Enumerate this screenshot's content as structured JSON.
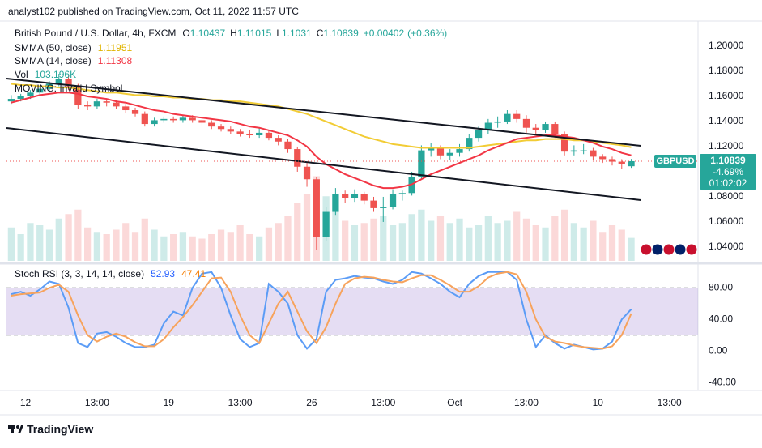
{
  "header": {
    "published": "analyst102 published on TradingView.com, Oct 11, 2022 11:57 UTC"
  },
  "footer": {
    "brand": "TradingView"
  },
  "chart_data": [
    {
      "type": "candlestick",
      "title": "British Pound / U.S. Dollar, 4h, FXCM",
      "ohlc_labels": [
        "O",
        "H",
        "L",
        "C"
      ],
      "change": {
        "value": 0.00402,
        "label": "+0.00402"
      },
      "change_pct": {
        "value": 0.36,
        "label": "(+0.36%)"
      },
      "colors": {
        "up": "#26a69a",
        "down": "#ef5350"
      },
      "open": [
        1.156,
        1.158,
        1.16,
        1.163,
        1.166,
        1.17,
        1.174,
        1.168,
        1.153,
        1.152,
        1.156,
        1.155,
        1.152,
        1.149,
        1.146,
        1.138,
        1.141,
        1.142,
        1.141,
        1.143,
        1.141,
        1.139,
        1.136,
        1.134,
        1.132,
        1.13,
        1.129,
        1.131,
        1.127,
        1.124,
        1.118,
        1.104,
        1.094,
        1.048,
        1.068,
        1.082,
        1.079,
        1.082,
        1.077,
        1.071,
        1.072,
        1.082,
        1.083,
        1.096,
        1.117,
        1.119,
        1.113,
        1.115,
        1.118,
        1.127,
        1.133,
        1.139,
        1.14,
        1.146,
        1.142,
        1.135,
        1.133,
        1.138,
        1.13,
        1.116,
        1.117,
        1.117,
        1.112,
        1.11,
        1.108,
        1.10437
      ],
      "high": [
        1.161,
        1.162,
        1.165,
        1.168,
        1.172,
        1.178,
        1.177,
        1.17,
        1.156,
        1.158,
        1.158,
        1.157,
        1.154,
        1.151,
        1.148,
        1.143,
        1.144,
        1.144,
        1.145,
        1.145,
        1.143,
        1.141,
        1.138,
        1.136,
        1.134,
        1.133,
        1.135,
        1.133,
        1.129,
        1.126,
        1.12,
        1.107,
        1.096,
        1.072,
        1.087,
        1.085,
        1.086,
        1.084,
        1.08,
        1.08,
        1.086,
        1.085,
        1.1,
        1.121,
        1.123,
        1.121,
        1.118,
        1.122,
        1.13,
        1.136,
        1.142,
        1.144,
        1.149,
        1.149,
        1.145,
        1.138,
        1.14,
        1.14,
        1.132,
        1.121,
        1.122,
        1.119,
        1.114,
        1.112,
        1.11,
        1.11015
      ],
      "low": [
        1.154,
        1.156,
        1.158,
        1.161,
        1.164,
        1.168,
        1.165,
        1.15,
        1.149,
        1.15,
        1.152,
        1.15,
        1.147,
        1.144,
        1.136,
        1.136,
        1.139,
        1.139,
        1.139,
        1.139,
        1.137,
        1.134,
        1.132,
        1.13,
        1.128,
        1.127,
        1.127,
        1.125,
        1.121,
        1.115,
        1.1,
        1.088,
        1.038,
        1.045,
        1.065,
        1.075,
        1.076,
        1.074,
        1.068,
        1.06,
        1.07,
        1.077,
        1.081,
        1.094,
        1.112,
        1.11,
        1.109,
        1.112,
        1.116,
        1.124,
        1.13,
        1.135,
        1.138,
        1.139,
        1.131,
        1.129,
        1.131,
        1.127,
        1.113,
        1.113,
        1.114,
        1.109,
        1.107,
        1.105,
        1.102,
        1.1031
      ],
      "close": [
        1.158,
        1.16,
        1.163,
        1.166,
        1.17,
        1.174,
        1.168,
        1.153,
        1.152,
        1.156,
        1.155,
        1.152,
        1.149,
        1.146,
        1.138,
        1.141,
        1.142,
        1.141,
        1.143,
        1.141,
        1.139,
        1.136,
        1.134,
        1.132,
        1.13,
        1.129,
        1.131,
        1.127,
        1.124,
        1.118,
        1.104,
        1.094,
        1.048,
        1.068,
        1.082,
        1.079,
        1.082,
        1.077,
        1.071,
        1.072,
        1.082,
        1.083,
        1.096,
        1.117,
        1.119,
        1.113,
        1.115,
        1.118,
        1.127,
        1.133,
        1.139,
        1.14,
        1.146,
        1.142,
        1.135,
        1.133,
        1.138,
        1.13,
        1.116,
        1.117,
        1.117,
        1.112,
        1.11,
        1.108,
        1.106,
        1.10839
      ],
      "xlim": [
        -0.5,
        72
      ],
      "xticks": [
        {
          "value": 1.5,
          "label": "12"
        },
        {
          "value": 9,
          "label": "13:00"
        },
        {
          "value": 16.5,
          "label": "19"
        },
        {
          "value": 24,
          "label": "13:00"
        },
        {
          "value": 31.5,
          "label": "26"
        },
        {
          "value": 39,
          "label": "13:00"
        },
        {
          "value": 46.5,
          "label": "Oct"
        },
        {
          "value": 54,
          "label": "13:00"
        },
        {
          "value": 61.5,
          "label": "10"
        },
        {
          "value": 69,
          "label": "13:00"
        }
      ],
      "ylim": [
        1.029,
        1.2174
      ],
      "yticks": [
        {
          "value": 1.2,
          "label": "1.20000"
        },
        {
          "value": 1.18,
          "label": "1.18000"
        },
        {
          "value": 1.16,
          "label": "1.16000"
        },
        {
          "value": 1.14,
          "label": "1.14000"
        },
        {
          "value": 1.12,
          "label": "1.12000"
        },
        {
          "value": 1.08,
          "label": "1.08000"
        },
        {
          "value": 1.06,
          "label": "1.06000"
        },
        {
          "value": 1.04,
          "label": "1.04000"
        }
      ],
      "grid": false,
      "indicators": [
        {
          "name": "SMMA (50, close)",
          "color": "#f2cc35",
          "values": [
            1.17,
            1.169,
            1.169,
            1.168,
            1.168,
            1.167,
            1.167,
            1.166,
            1.165,
            1.164,
            1.163,
            1.163,
            1.162,
            1.161,
            1.161,
            1.16,
            1.16,
            1.159,
            1.159,
            1.158,
            1.158,
            1.157,
            1.157,
            1.156,
            1.156,
            1.155,
            1.154,
            1.153,
            1.152,
            1.15,
            1.148,
            1.146,
            1.143,
            1.14,
            1.137,
            1.134,
            1.131,
            1.128,
            1.126,
            1.124,
            1.122,
            1.121,
            1.12,
            1.119,
            1.119,
            1.119,
            1.119,
            1.119,
            1.119,
            1.12,
            1.121,
            1.122,
            1.123,
            1.124,
            1.125,
            1.125,
            1.126,
            1.126,
            1.126,
            1.125,
            1.125,
            1.124,
            1.123,
            1.122,
            1.121,
            1.11951
          ]
        },
        {
          "name": "SMMA (14, close)",
          "color": "#f23645",
          "values": [
            1.155,
            1.157,
            1.159,
            1.161,
            1.162,
            1.163,
            1.163,
            1.162,
            1.16,
            1.159,
            1.158,
            1.156,
            1.155,
            1.153,
            1.151,
            1.149,
            1.148,
            1.146,
            1.145,
            1.144,
            1.143,
            1.142,
            1.141,
            1.14,
            1.138,
            1.136,
            1.135,
            1.133,
            1.131,
            1.129,
            1.125,
            1.12,
            1.112,
            1.106,
            1.102,
            1.098,
            1.095,
            1.092,
            1.089,
            1.087,
            1.087,
            1.088,
            1.09,
            1.094,
            1.098,
            1.101,
            1.104,
            1.107,
            1.11,
            1.113,
            1.117,
            1.12,
            1.123,
            1.126,
            1.127,
            1.128,
            1.129,
            1.129,
            1.128,
            1.127,
            1.125,
            1.123,
            1.12,
            1.118,
            1.115,
            1.11308
          ]
        }
      ],
      "volume": {
        "name": "Vol",
        "ylim": [
          0,
          400000
        ],
        "last_label": "103.196K",
        "values": [
          150000,
          120000,
          170000,
          160000,
          140000,
          190000,
          210000,
          230000,
          150000,
          130000,
          120000,
          140000,
          170000,
          130000,
          190000,
          140000,
          110000,
          120000,
          130000,
          110000,
          100000,
          120000,
          140000,
          130000,
          160000,
          120000,
          110000,
          150000,
          170000,
          200000,
          260000,
          300000,
          380000,
          290000,
          220000,
          180000,
          160000,
          170000,
          190000,
          200000,
          160000,
          170000,
          210000,
          230000,
          180000,
          200000,
          170000,
          190000,
          150000,
          160000,
          200000,
          170000,
          180000,
          220000,
          190000,
          160000,
          150000,
          200000,
          230000,
          170000,
          150000,
          180000,
          130000,
          160000,
          140000,
          103196
        ]
      },
      "extra_indicator": "MOVING: Invalid Symbol",
      "trendlines": [
        {
          "color": "#131722",
          "x": [
            -0.5,
            66
          ],
          "y": [
            1.1742,
            1.1206
          ]
        },
        {
          "color": "#131722",
          "x": [
            -0.5,
            66
          ],
          "y": [
            1.1348,
            1.0774
          ]
        }
      ],
      "symbol": "GBPUSD",
      "badge_change": "-4.69%",
      "countdown": "01:02:02"
    },
    {
      "type": "line",
      "title": "Stoch RSI (3, 3, 14, 14, close)",
      "xlim": [
        -0.5,
        72
      ],
      "ylim": [
        -50,
        108
      ],
      "yticks": [
        {
          "value": 80,
          "label": "80.00"
        },
        {
          "value": 40,
          "label": "40.00"
        },
        {
          "value": 0,
          "label": "0.00"
        },
        {
          "value": -40,
          "label": "-40.00"
        }
      ],
      "band": [
        20,
        80
      ],
      "band_color": "#7e57c2",
      "series": [
        {
          "color": "#5b9cf6",
          "values": [
            72,
            75,
            70,
            78,
            88,
            85,
            55,
            10,
            5,
            22,
            24,
            18,
            10,
            5,
            5,
            8,
            35,
            50,
            45,
            80,
            98,
            100,
            80,
            45,
            15,
            5,
            10,
            85,
            75,
            60,
            20,
            3,
            15,
            75,
            90,
            92,
            95,
            93,
            92,
            88,
            85,
            90,
            100,
            98,
            92,
            85,
            75,
            68,
            85,
            95,
            100,
            100,
            100,
            90,
            40,
            5,
            20,
            10,
            3,
            8,
            5,
            2,
            3,
            12,
            40,
            52.93
          ]
        },
        {
          "color": "#f7a35c",
          "values": [
            70,
            72,
            73,
            74,
            80,
            84,
            75,
            45,
            20,
            12,
            18,
            22,
            18,
            11,
            6,
            6,
            15,
            30,
            43,
            58,
            75,
            92,
            93,
            75,
            45,
            20,
            10,
            35,
            60,
            75,
            50,
            25,
            10,
            30,
            60,
            85,
            92,
            94,
            93,
            90,
            88,
            87,
            92,
            96,
            96,
            90,
            83,
            75,
            75,
            82,
            93,
            98,
            100,
            97,
            75,
            40,
            18,
            12,
            10,
            7,
            5,
            4,
            3,
            6,
            20,
            47.41
          ]
        }
      ]
    }
  ]
}
